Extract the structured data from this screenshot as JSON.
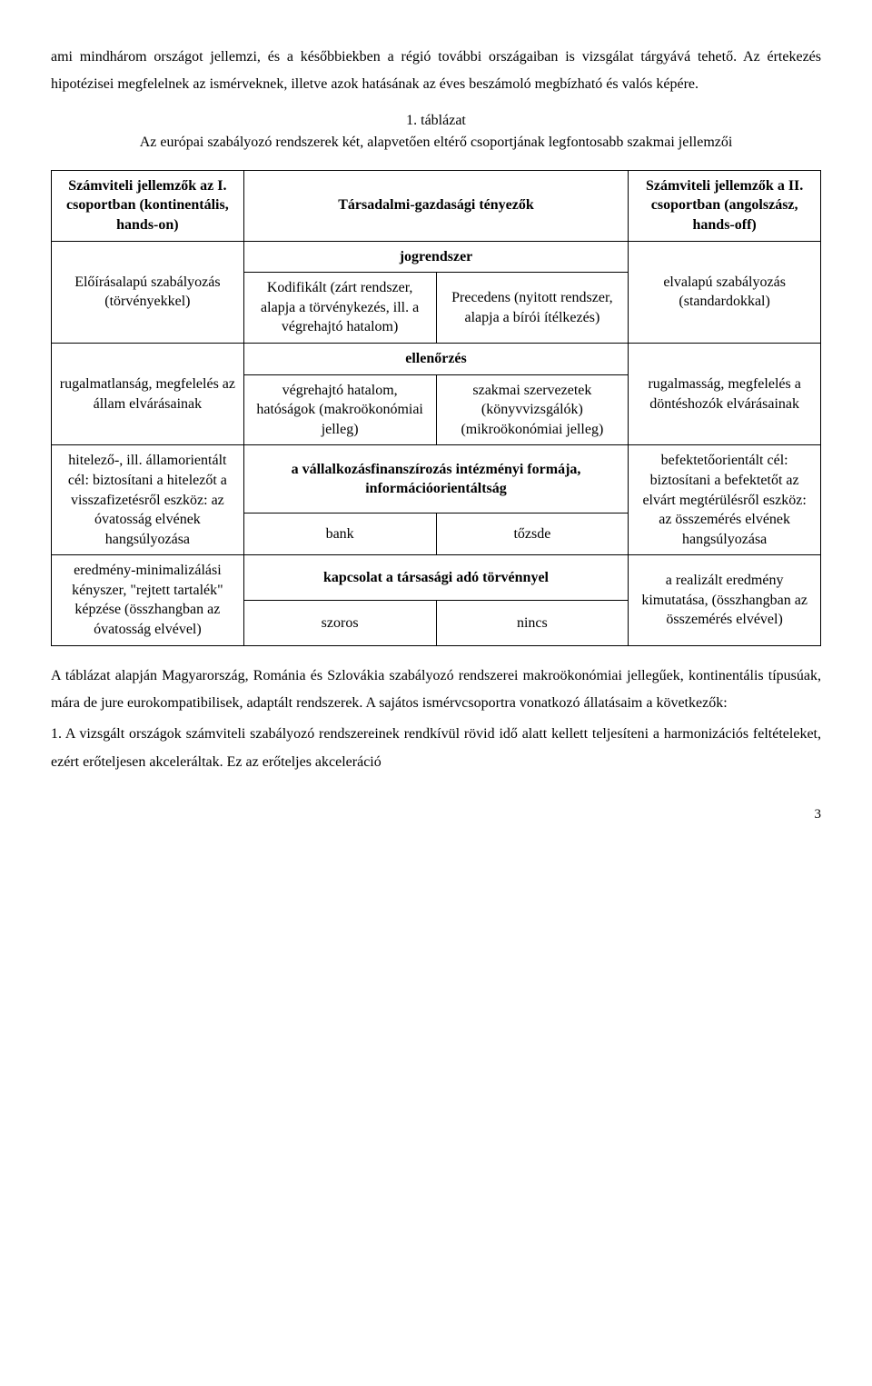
{
  "intro": {
    "p1": "ami mindhárom országot jellemzi, és a későbbiekben a régió további országaiban is vizsgálat tárgyává tehető. Az értekezés hipotézisei megfelelnek az ismérveknek, illetve azok hatásának az éves beszámoló megbízható és valós képére."
  },
  "caption": {
    "num": "1. táblázat",
    "title": "Az európai szabályozó rendszerek két, alapvetően eltérő csoportjának legfontosabb szakmai jellemzői"
  },
  "table": {
    "head_left": "Számviteli jellemzők az I. csoportban (kontinentális, hands-on)",
    "head_mid": "Társadalmi-gazdasági tényezők",
    "head_right": "Számviteli jellemzők a II. csoportban (angolszász, hands-off)",
    "s1_title": "jogrendszer",
    "s1_left": "Előírásalapú szabályozás (törvényekkel)",
    "s1_m1": "Kodifikált (zárt rendszer, alapja a törvénykezés, ill. a végrehajtó hatalom)",
    "s1_m2": "Precedens (nyitott rendszer, alapja a bírói ítélkezés)",
    "s1_right": "elvalapú szabályozás (standardokkal)",
    "s2_title": "ellenőrzés",
    "s2_left": "rugalmatlanság, megfelelés az állam elvárásainak",
    "s2_m1": "végrehajtó hatalom, hatóságok (makroökonómiai jelleg)",
    "s2_m2": "szakmai szervezetek (könyvvizsgálók) (mikroökonómiai jelleg)",
    "s2_right": "rugalmasság, megfelelés a döntéshozók elvárásainak",
    "s3_title": "a vállalkozásfinanszírozás intézményi formája, információorientáltság",
    "s3_left": "hitelező-, ill. államorientált cél: biztosítani a hitelezőt a visszafizetésről eszköz: az óvatosság elvének hangsúlyozása",
    "s3_m1": "bank",
    "s3_m2": "tőzsde",
    "s3_right": "befektetőorientált cél: biztosítani a befektetőt az elvárt megtérülésről eszköz: az összemérés elvének hangsúlyozása",
    "s4_title": "kapcsolat a társasági adó törvénnyel",
    "s4_left": "eredmény-minimalizálási kényszer, \"rejtett tartalék\" képzése (összhangban az óvatosság elvével)",
    "s4_m1": "szoros",
    "s4_m2": "nincs",
    "s4_right": "a realizált eredmény kimutatása, (összhangban az összemérés elvével)"
  },
  "outro": {
    "p1": "A táblázat alapján Magyarország, Románia és Szlovákia szabályozó rendszerei makroökonómiai jellegűek, kontinentális típusúak, mára de jure eurokompatibilisek, adaptált rendszerek. A sajátos ismérvcsoportra vonatkozó állatásaim a következők:",
    "p2": "1. A vizsgált országok számviteli szabályozó rendszereinek rendkívül rövid idő alatt kellett teljesíteni a harmonizációs feltételeket, ezért erőteljesen akceleráltak. Ez az erőteljes akceleráció"
  },
  "page_number": "3"
}
